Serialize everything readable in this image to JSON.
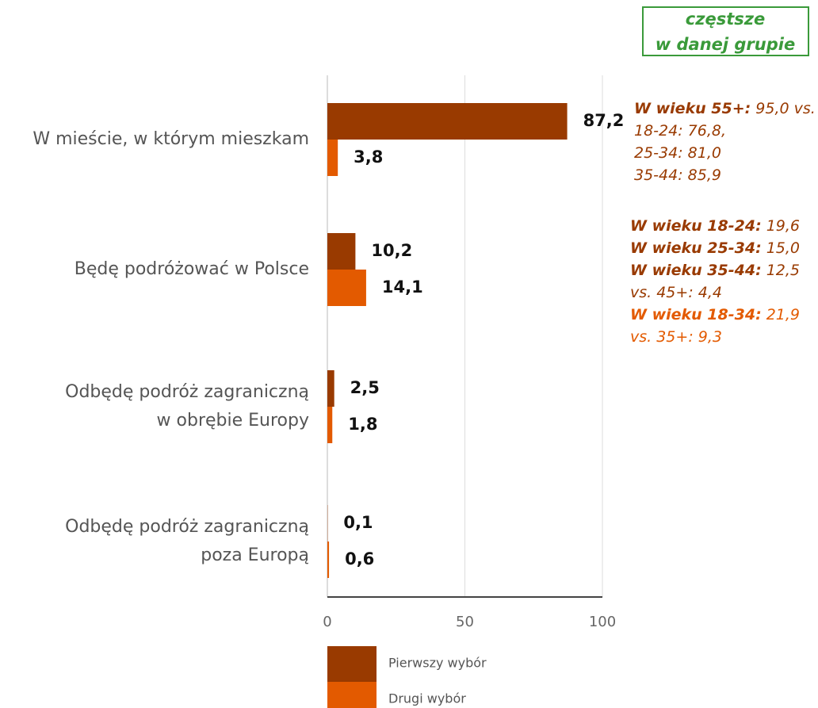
{
  "chart_data": {
    "type": "hbar",
    "categories": [
      "W mieście, w którym mieszkam",
      "Będę podróżować w Polsce",
      "Odbędę podróż zagraniczną\nw obrębie Europy",
      "Odbędę podróż zagraniczną\npoza Europą"
    ],
    "series": [
      {
        "name": "Pierwszy wybór",
        "color": "#993a00",
        "values": [
          87.2,
          10.2,
          2.5,
          0.1
        ],
        "value_labels": [
          "87,2",
          "10,2",
          "2,5",
          "0,1"
        ]
      },
      {
        "name": "Drugi wybór",
        "color": "#e35a00",
        "values": [
          3.8,
          14.1,
          1.8,
          0.6
        ],
        "value_labels": [
          "3,8",
          "14,1",
          "1,8",
          "0,6"
        ]
      }
    ],
    "xlim": [
      0,
      100
    ],
    "xticks": [
      0,
      50,
      100
    ],
    "grid": true,
    "box_note": {
      "lines": [
        "częstsze",
        "w danej grupie"
      ],
      "color": "#3a9a3a"
    },
    "annotations": [
      [
        [
          {
            "text": "W wieku 55+:",
            "bold": true,
            "color": "#993a00"
          },
          {
            "text": " 95,0 vs.",
            "bold": false,
            "color": "#993a00"
          }
        ],
        [
          {
            "text": "18-24: 76,8,",
            "bold": false,
            "color": "#993a00"
          }
        ],
        [
          {
            "text": "25-34: 81,0",
            "bold": false,
            "color": "#993a00"
          }
        ],
        [
          {
            "text": "35-44: 85,9",
            "bold": false,
            "color": "#993a00"
          }
        ]
      ],
      [
        [
          {
            "text": "W wieku 18-24:",
            "bold": true,
            "color": "#993a00"
          },
          {
            "text": " 19,6",
            "bold": false,
            "color": "#993a00"
          }
        ],
        [
          {
            "text": "W wieku 25-34:",
            "bold": true,
            "color": "#993a00"
          },
          {
            "text": " 15,0",
            "bold": false,
            "color": "#993a00"
          }
        ],
        [
          {
            "text": "W wieku 35-44:",
            "bold": true,
            "color": "#993a00"
          },
          {
            "text": " 12,5",
            "bold": false,
            "color": "#993a00"
          }
        ],
        [
          {
            "text": "vs. 45+: 4,4",
            "bold": false,
            "color": "#993a00"
          }
        ],
        [
          {
            "text": "W wieku 18-34:",
            "bold": true,
            "color": "#e35a00"
          },
          {
            "text": " 21,9",
            "bold": false,
            "color": "#e35a00"
          }
        ],
        [
          {
            "text": "vs. 35+: 9,3",
            "bold": false,
            "color": "#e35a00"
          }
        ]
      ]
    ]
  }
}
